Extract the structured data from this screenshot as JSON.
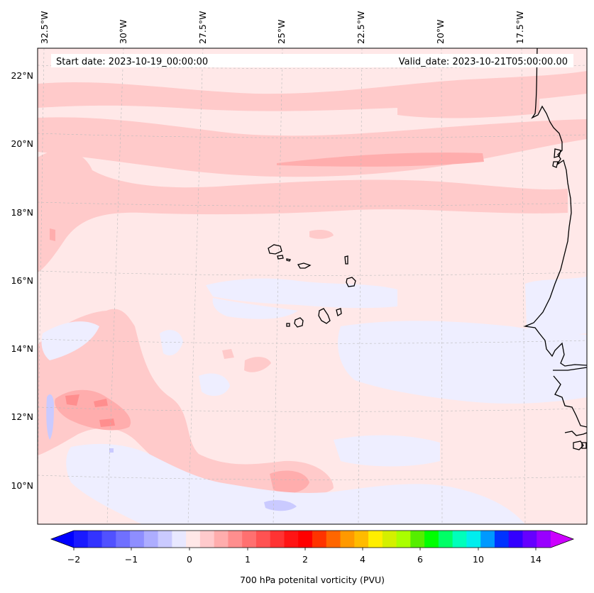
{
  "header": {
    "start_date": "Start date: 2023-10-19_00:00:00",
    "valid_date": "Valid_date: 2023-10-21T05:00:00.00"
  },
  "longitude_ticks": [
    "32.5°W",
    "30°W",
    "27.5°W",
    "25°W",
    "22.5°W",
    "20°W",
    "17.5°W"
  ],
  "latitude_ticks": [
    "22°N",
    "20°N",
    "18°N",
    "16°N",
    "14°N",
    "12°N",
    "10°N"
  ],
  "colorbar": {
    "label": "700 hPa potenital vorticity (PVU)",
    "tick_labels": [
      "−2",
      "−1",
      "0",
      "1",
      "2",
      "4",
      "6",
      "10",
      "14"
    ],
    "colors": [
      "#1a1aff",
      "#3333ff",
      "#5151ff",
      "#7070ff",
      "#8e8eff",
      "#adadff",
      "#cacaff",
      "#e8e8ff",
      "#ffe8e8",
      "#ffcacc",
      "#ffadad",
      "#ff8e8e",
      "#ff7070",
      "#ff5252",
      "#ff3333",
      "#ff1414",
      "#ff0000",
      "#ff3300",
      "#ff6600",
      "#ff9900",
      "#ffbb00",
      "#ffee00",
      "#d4f000",
      "#aaff00",
      "#55ee00",
      "#00ff00",
      "#00ff66",
      "#00ffbb",
      "#00eeee",
      "#0099ff",
      "#0033ff",
      "#3300ff",
      "#6600ff",
      "#9900ff"
    ],
    "under_color": "#0000ff",
    "over_color": "#cc00ff"
  },
  "map": {
    "background_color": "#ffe8e8",
    "features": [
      "Cabo Verde islands",
      "West African coastline"
    ]
  }
}
